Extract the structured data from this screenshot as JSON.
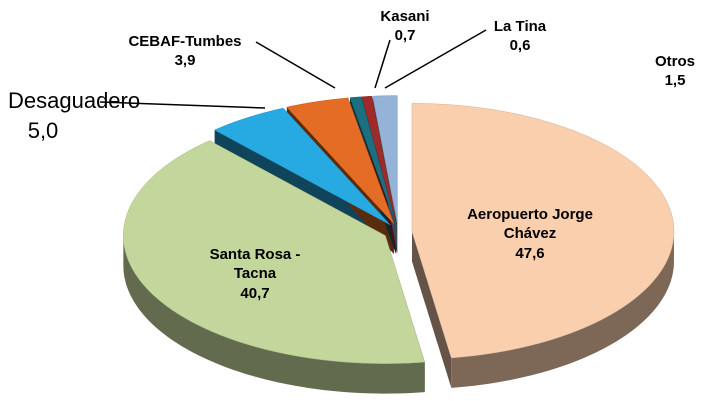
{
  "chart_data": {
    "type": "pie",
    "categories": [
      "Aeropuerto Jorge Chávez",
      "Santa Rosa - Tacna",
      "Desaguadero",
      "CEBAF-Tumbes",
      "Kasani",
      "La Tina",
      "Otros"
    ],
    "values": [
      47.6,
      40.7,
      5.0,
      3.9,
      0.7,
      0.6,
      1.5
    ],
    "value_labels": [
      "47,6",
      "40,7",
      "5,0",
      "3,9",
      "0,7",
      "0,6",
      "1,5"
    ],
    "colors": [
      "#f9cfae",
      "#c3d69b",
      "#27a9e1",
      "#e46c24",
      "#1c6f80",
      "#a02a2a",
      "#95b3d7"
    ]
  }
}
